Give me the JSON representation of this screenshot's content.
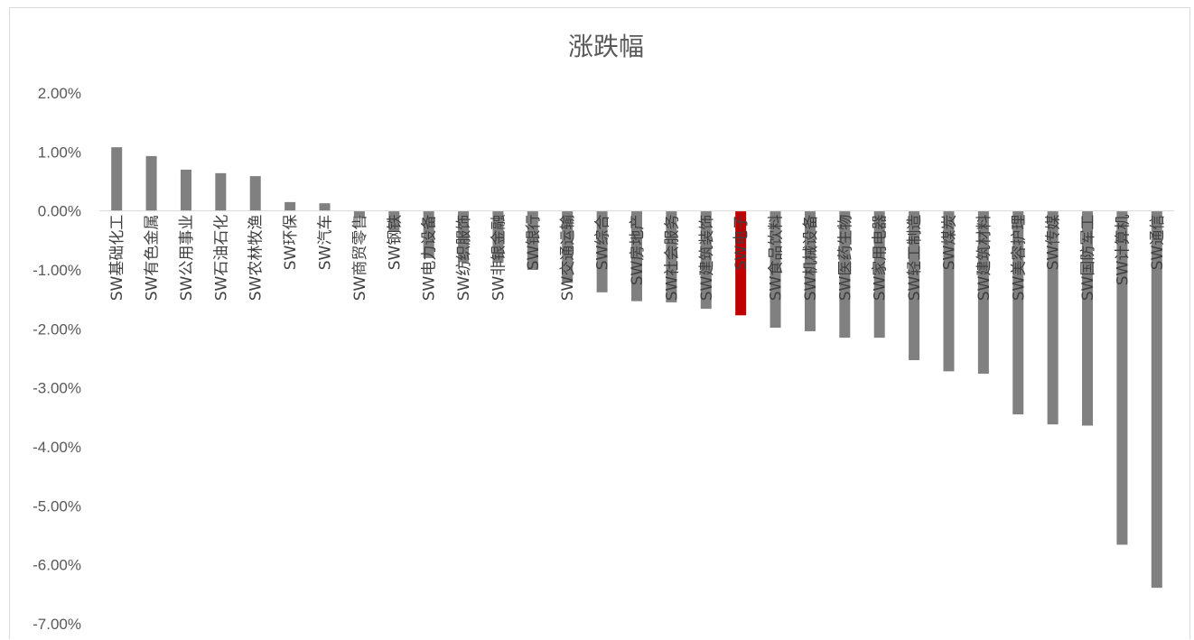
{
  "chart_data": {
    "type": "bar",
    "title": "涨跌幅",
    "xlabel": "",
    "ylabel": "",
    "ylim": [
      -7,
      2
    ],
    "yticks": [
      "2.00%",
      "1.00%",
      "0.00%",
      "-1.00%",
      "-2.00%",
      "-3.00%",
      "-4.00%",
      "-5.00%",
      "-6.00%",
      "-7.00%"
    ],
    "grid": false,
    "legend": "none",
    "bar_color": "#808080",
    "highlight_color": "#c00000",
    "highlight_category": "SW电子",
    "categories": [
      "SW基础化工",
      "SW有色金属",
      "SW公用事业",
      "SW石油石化",
      "SW农林牧渔",
      "SW环保",
      "SW汽车",
      "SW商贸零售",
      "SW钢铁",
      "SW电力设备",
      "SW纺织服饰",
      "SW非银金融",
      "SW银行",
      "SW交通运输",
      "SW综合",
      "SW房地产",
      "SW社会服务",
      "SW建筑装饰",
      "SW电子",
      "SW食品饮料",
      "SW机械设备",
      "SW医药生物",
      "SW家用电器",
      "SW轻工制造",
      "SW煤炭",
      "SW建筑材料",
      "SW美容护理",
      "SW传媒",
      "SW国防军工",
      "SW计算机",
      "SW通信"
    ],
    "values": [
      1.08,
      0.93,
      0.7,
      0.64,
      0.59,
      0.15,
      0.13,
      -0.12,
      -0.35,
      -0.8,
      -0.87,
      -0.88,
      -1.0,
      -1.22,
      -1.38,
      -1.53,
      -1.55,
      -1.66,
      -1.77,
      -1.98,
      -2.04,
      -2.15,
      -2.15,
      -2.53,
      -2.72,
      -2.76,
      -3.45,
      -3.62,
      -3.64,
      -5.66,
      -6.39
    ]
  }
}
